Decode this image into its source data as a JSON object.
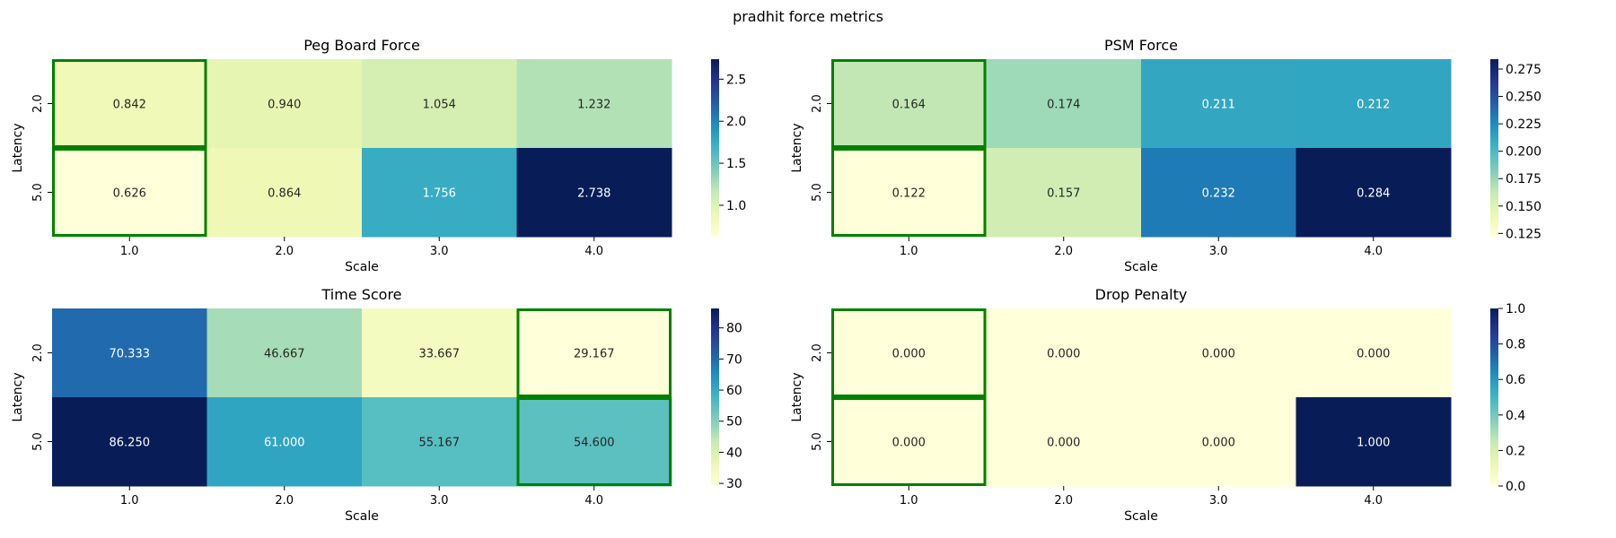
{
  "figure": {
    "suptitle": "pradhit force metrics"
  },
  "chart_data": [
    {
      "type": "heatmap",
      "title": "Peg Board Force",
      "xlabel": "Scale",
      "ylabel": "Latency",
      "x_categories": [
        "1.0",
        "2.0",
        "3.0",
        "4.0"
      ],
      "y_categories": [
        "2.0",
        "5.0"
      ],
      "values": [
        [
          0.842,
          0.94,
          1.054,
          1.232
        ],
        [
          0.626,
          0.864,
          1.756,
          2.738
        ]
      ],
      "colormap": "YlGnBu",
      "colorbar": {
        "min": 0.626,
        "max": 2.738,
        "ticks": [
          1.0,
          1.5,
          2.0,
          2.5
        ],
        "tick_labels": [
          "1.0",
          "1.5",
          "2.0",
          "2.5"
        ]
      },
      "highlighted": [
        [
          0,
          0
        ],
        [
          1,
          0
        ]
      ],
      "highlight_color": "#008000"
    },
    {
      "type": "heatmap",
      "title": "PSM Force",
      "xlabel": "Scale",
      "ylabel": "Latency",
      "x_categories": [
        "1.0",
        "2.0",
        "3.0",
        "4.0"
      ],
      "y_categories": [
        "2.0",
        "5.0"
      ],
      "values": [
        [
          0.164,
          0.174,
          0.211,
          0.212
        ],
        [
          0.122,
          0.157,
          0.232,
          0.284
        ]
      ],
      "colormap": "YlGnBu",
      "colorbar": {
        "min": 0.122,
        "max": 0.284,
        "ticks": [
          0.125,
          0.15,
          0.175,
          0.2,
          0.225,
          0.25,
          0.275
        ],
        "tick_labels": [
          "0.125",
          "0.150",
          "0.175",
          "0.200",
          "0.225",
          "0.250",
          "0.275"
        ]
      },
      "highlighted": [
        [
          0,
          0
        ],
        [
          1,
          0
        ]
      ],
      "highlight_color": "#008000"
    },
    {
      "type": "heatmap",
      "title": "Time Score",
      "xlabel": "Scale",
      "ylabel": "Latency",
      "x_categories": [
        "1.0",
        "2.0",
        "3.0",
        "4.0"
      ],
      "y_categories": [
        "2.0",
        "5.0"
      ],
      "values": [
        [
          70.333,
          46.667,
          33.667,
          29.167
        ],
        [
          86.25,
          61.0,
          55.167,
          54.6
        ]
      ],
      "colormap": "YlGnBu",
      "colorbar": {
        "min": 29.167,
        "max": 86.25,
        "ticks": [
          30,
          40,
          50,
          60,
          70,
          80
        ],
        "tick_labels": [
          "30",
          "40",
          "50",
          "60",
          "70",
          "80"
        ]
      },
      "highlighted": [
        [
          0,
          3
        ],
        [
          1,
          3
        ]
      ],
      "highlight_color": "#008000"
    },
    {
      "type": "heatmap",
      "title": "Drop Penalty",
      "xlabel": "Scale",
      "ylabel": "Latency",
      "x_categories": [
        "1.0",
        "2.0",
        "3.0",
        "4.0"
      ],
      "y_categories": [
        "2.0",
        "5.0"
      ],
      "values": [
        [
          0.0,
          0.0,
          0.0,
          0.0
        ],
        [
          0.0,
          0.0,
          0.0,
          1.0
        ]
      ],
      "colormap": "YlGnBu",
      "colorbar": {
        "min": 0.0,
        "max": 1.0,
        "ticks": [
          0.0,
          0.2,
          0.4,
          0.6,
          0.8,
          1.0
        ],
        "tick_labels": [
          "0.0",
          "0.2",
          "0.4",
          "0.6",
          "0.8",
          "1.0"
        ]
      },
      "highlighted": [
        [
          0,
          0
        ],
        [
          1,
          0
        ]
      ],
      "highlight_color": "#008000"
    }
  ]
}
